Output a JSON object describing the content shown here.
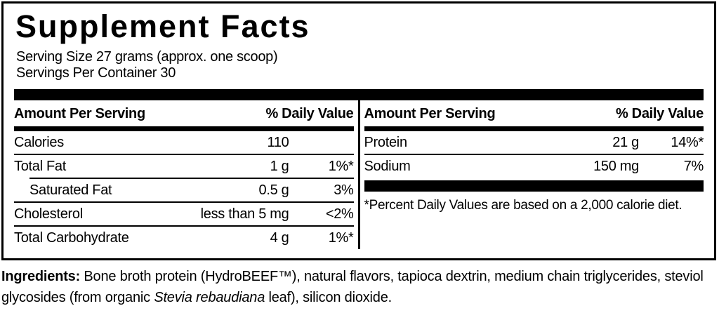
{
  "panel": {
    "title": "Supplement Facts",
    "serving_size": "Serving Size 27 grams (approx. one scoop)",
    "servings_per_container": "Servings Per Container 30"
  },
  "table": {
    "header": {
      "amount": "Amount Per Serving",
      "daily_value": "% Daily Value"
    },
    "left_rows": [
      {
        "name": "Calories",
        "amount": "110",
        "dv": ""
      },
      {
        "name": "Total Fat",
        "amount": "1 g",
        "dv": "1%*"
      },
      {
        "name": "Saturated Fat",
        "amount": "0.5 g",
        "dv": "3%"
      },
      {
        "name": "Cholesterol",
        "amount": "less than 5 mg",
        "dv": "<2%"
      },
      {
        "name": "Total Carbohydrate",
        "amount": "4 g",
        "dv": "1%*"
      }
    ],
    "right_rows": [
      {
        "name": "Protein",
        "amount": "21 g",
        "dv": "14%*"
      },
      {
        "name": "Sodium",
        "amount": "150 mg",
        "dv": "7%"
      }
    ],
    "footnote": "*Percent Daily Values are based on a 2,000 calorie diet."
  },
  "ingredients": {
    "label": "Ingredients:",
    "before_italic": " Bone broth protein (HydroBEEF™), natural flavors, tapioca dextrin, medium chain triglycerides, steviol glycosides (from organic ",
    "italic": "Stevia rebaudiana",
    "after_italic": " leaf), silicon dioxide."
  },
  "colors": {
    "ink": "#000000",
    "background": "#ffffff"
  }
}
